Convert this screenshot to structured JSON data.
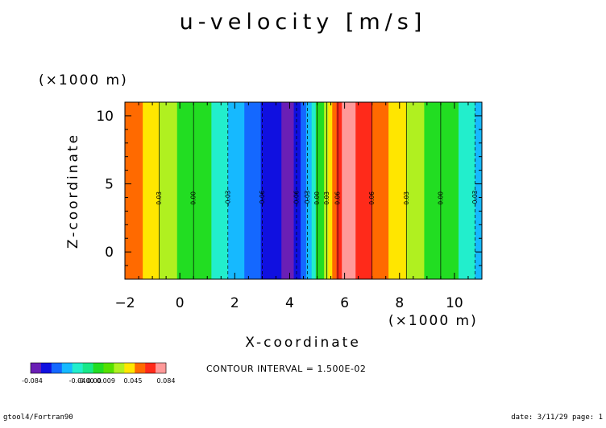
{
  "chart_data": {
    "type": "heatmap",
    "title": "u-velocity [m/s]",
    "xlabel": "X-coordinate",
    "ylabel": "Z-coordinate",
    "x_unit": "(×1000 m)",
    "y_unit": "(×1000 m)",
    "xlim": [
      -2,
      11
    ],
    "ylim": [
      -2,
      11
    ],
    "x_ticks": [
      "−2",
      "0",
      "2",
      "4",
      "6",
      "8",
      "10"
    ],
    "x_tick_values": [
      -2,
      0,
      2,
      4,
      6,
      8,
      10
    ],
    "y_ticks": [
      "0",
      "5",
      "10"
    ],
    "y_tick_values": [
      0,
      5,
      10
    ],
    "field_varies_with": "x",
    "bands": [
      {
        "x0": -2.0,
        "x1": -1.35,
        "value": 0.05
      },
      {
        "x0": -1.35,
        "x1": -0.75,
        "value": 0.035
      },
      {
        "x0": -0.75,
        "x1": -0.1,
        "value": 0.02
      },
      {
        "x0": -0.1,
        "x1": 0.5,
        "value": 0.005
      },
      {
        "x0": 0.5,
        "x1": 1.15,
        "value": -0.005
      },
      {
        "x0": 1.15,
        "x1": 1.75,
        "value": -0.02
      },
      {
        "x0": 1.75,
        "x1": 2.35,
        "value": -0.035
      },
      {
        "x0": 2.35,
        "x1": 2.95,
        "value": -0.05
      },
      {
        "x0": 2.95,
        "x1": 3.7,
        "value": -0.065
      },
      {
        "x0": 3.7,
        "x1": 4.15,
        "value": -0.08
      },
      {
        "x0": 4.15,
        "x1": 4.4,
        "value": -0.065
      },
      {
        "x0": 4.4,
        "x1": 4.6,
        "value": -0.05
      },
      {
        "x0": 4.6,
        "x1": 4.8,
        "value": -0.035
      },
      {
        "x0": 4.8,
        "x1": 4.95,
        "value": -0.02
      },
      {
        "x0": 4.95,
        "x1": 5.1,
        "value": -0.005
      },
      {
        "x0": 5.1,
        "x1": 5.25,
        "value": 0.005
      },
      {
        "x0": 5.25,
        "x1": 5.4,
        "value": 0.02
      },
      {
        "x0": 5.4,
        "x1": 5.55,
        "value": 0.035
      },
      {
        "x0": 5.55,
        "x1": 5.7,
        "value": 0.05
      },
      {
        "x0": 5.7,
        "x1": 5.9,
        "value": 0.065
      },
      {
        "x0": 5.9,
        "x1": 6.4,
        "value": 0.08
      },
      {
        "x0": 6.4,
        "x1": 7.0,
        "value": 0.065
      },
      {
        "x0": 7.0,
        "x1": 7.6,
        "value": 0.05
      },
      {
        "x0": 7.6,
        "x1": 8.25,
        "value": 0.035
      },
      {
        "x0": 8.25,
        "x1": 8.9,
        "value": 0.02
      },
      {
        "x0": 8.9,
        "x1": 9.5,
        "value": 0.005
      },
      {
        "x0": 9.5,
        "x1": 10.15,
        "value": -0.005
      },
      {
        "x0": 10.15,
        "x1": 10.75,
        "value": -0.02
      },
      {
        "x0": 10.75,
        "x1": 11.0,
        "value": -0.035
      }
    ],
    "contour_lines": [
      {
        "x": -0.75,
        "label": "0.03",
        "dashed": false
      },
      {
        "x": 0.5,
        "label": "0.00",
        "dashed": false
      },
      {
        "x": 1.75,
        "label": "-0.03",
        "dashed": true
      },
      {
        "x": 3.0,
        "label": "-0.06",
        "dashed": true
      },
      {
        "x": 4.25,
        "label": "-0.06",
        "dashed": true
      },
      {
        "x": 4.65,
        "label": "-0.03",
        "dashed": true
      },
      {
        "x": 5.0,
        "label": "0.00",
        "dashed": false
      },
      {
        "x": 5.35,
        "label": "0.03",
        "dashed": false
      },
      {
        "x": 5.75,
        "label": "0.06",
        "dashed": false
      },
      {
        "x": 7.0,
        "label": "0.06",
        "dashed": false
      },
      {
        "x": 8.25,
        "label": "0.03",
        "dashed": false
      },
      {
        "x": 9.5,
        "label": "0.00",
        "dashed": false
      },
      {
        "x": 10.75,
        "label": "-0.03",
        "dashed": true
      }
    ],
    "colorbar": {
      "colors": [
        "#6a1fb5",
        "#1010e0",
        "#1468ff",
        "#16b9ff",
        "#22eecc",
        "#17e889",
        "#22dd22",
        "#55e000",
        "#b0f020",
        "#ffe600",
        "#ff6a00",
        "#ff2a1a",
        "#ff9999"
      ],
      "labels": [
        "-0.084",
        "-0.04",
        "-0.00",
        "0.00",
        "0.009",
        "0.045",
        "0.084"
      ]
    },
    "annotation": "CONTOUR INTERVAL = 1.500E-02"
  },
  "footer": {
    "left": "gtool4/Fortran90",
    "right": "date: 3/11/29 page: 1"
  }
}
